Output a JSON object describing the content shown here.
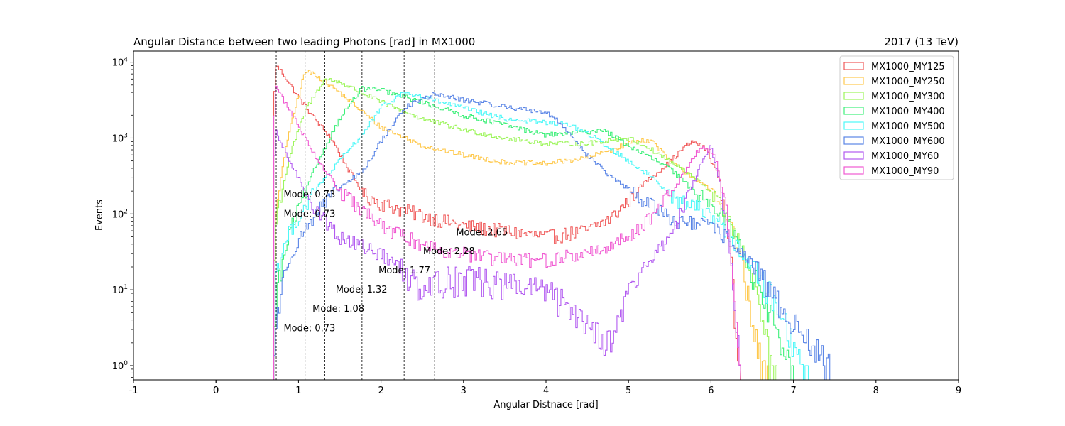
{
  "chart_data": {
    "type": "line",
    "title": "Angular Distance between two leading Photons [rad] in MX1000",
    "title_right": "2017 (13 TeV)",
    "xlabel": "Angular Distnace [rad]",
    "ylabel": "Events",
    "xlim": [
      -1,
      9
    ],
    "ylim": [
      0.65,
      14000
    ],
    "yscale": "log",
    "grid": false,
    "legend_position": "top-right",
    "x_ticks": [
      "-1",
      "0",
      "0",
      "1",
      "2",
      "3",
      "4",
      "5",
      "6",
      "7",
      "8",
      "9"
    ],
    "x_tick_values": [
      -1,
      0,
      0,
      1,
      2,
      3,
      4,
      5,
      6,
      7,
      8,
      9
    ],
    "y_ticks": [
      {
        "value": 1,
        "base": "10",
        "exp": "0"
      },
      {
        "value": 10,
        "base": "10",
        "exp": "1"
      },
      {
        "value": 100,
        "base": "10",
        "exp": "2"
      },
      {
        "value": 1000,
        "base": "10",
        "exp": "3"
      },
      {
        "value": 10000,
        "base": "10",
        "exp": "4"
      }
    ],
    "series": [
      {
        "name": "MX1000_MY125",
        "color": "#f05a5a",
        "peak": 0.73,
        "points": [
          [
            0.7,
            0
          ],
          [
            0.72,
            8000
          ],
          [
            0.73,
            9000
          ],
          [
            0.8,
            7500
          ],
          [
            1.0,
            3500
          ],
          [
            1.2,
            1800
          ],
          [
            1.4,
            1000
          ],
          [
            1.6,
            400
          ],
          [
            1.8,
            180
          ],
          [
            2.0,
            140
          ],
          [
            2.2,
            120
          ],
          [
            2.6,
            90
          ],
          [
            3.0,
            70
          ],
          [
            3.5,
            60
          ],
          [
            4.0,
            50
          ],
          [
            4.5,
            60
          ],
          [
            4.8,
            90
          ],
          [
            5.0,
            150
          ],
          [
            5.2,
            260
          ],
          [
            5.5,
            480
          ],
          [
            5.7,
            800
          ],
          [
            5.8,
            900
          ],
          [
            5.95,
            700
          ],
          [
            6.1,
            300
          ],
          [
            6.25,
            30
          ],
          [
            6.3,
            2
          ],
          [
            6.35,
            0
          ]
        ]
      },
      {
        "name": "MX1000_MY250",
        "color": "#ffc94d",
        "peak": 1.08,
        "points": [
          [
            0.7,
            0
          ],
          [
            0.74,
            120
          ],
          [
            0.85,
            800
          ],
          [
            1.0,
            3500
          ],
          [
            1.08,
            7500
          ],
          [
            1.2,
            7000
          ],
          [
            1.5,
            4000
          ],
          [
            2.0,
            1400
          ],
          [
            2.5,
            800
          ],
          [
            3.0,
            600
          ],
          [
            3.5,
            480
          ],
          [
            4.0,
            460
          ],
          [
            4.5,
            550
          ],
          [
            4.8,
            700
          ],
          [
            5.0,
            850
          ],
          [
            5.15,
            950
          ],
          [
            5.3,
            900
          ],
          [
            5.5,
            500
          ],
          [
            5.8,
            300
          ],
          [
            6.0,
            200
          ],
          [
            6.2,
            100
          ],
          [
            6.4,
            20
          ],
          [
            6.5,
            3
          ],
          [
            6.65,
            1
          ],
          [
            6.7,
            0
          ]
        ]
      },
      {
        "name": "MX1000_MY300",
        "color": "#9cf55a",
        "peak": 1.32,
        "points": [
          [
            0.7,
            0
          ],
          [
            0.74,
            100
          ],
          [
            0.9,
            600
          ],
          [
            1.1,
            2500
          ],
          [
            1.32,
            6000
          ],
          [
            1.5,
            5500
          ],
          [
            2.0,
            3000
          ],
          [
            2.5,
            1800
          ],
          [
            3.0,
            1300
          ],
          [
            3.5,
            1000
          ],
          [
            4.0,
            850
          ],
          [
            4.5,
            850
          ],
          [
            4.8,
            950
          ],
          [
            5.0,
            1000
          ],
          [
            5.2,
            800
          ],
          [
            5.5,
            500
          ],
          [
            5.8,
            300
          ],
          [
            6.0,
            200
          ],
          [
            6.2,
            100
          ],
          [
            6.4,
            30
          ],
          [
            6.6,
            5
          ],
          [
            6.75,
            1
          ],
          [
            6.8,
            0
          ]
        ]
      },
      {
        "name": "MX1000_MY400",
        "color": "#3ef07a",
        "peak": 1.77,
        "points": [
          [
            0.7,
            0
          ],
          [
            0.74,
            10
          ],
          [
            0.9,
            60
          ],
          [
            1.2,
            400
          ],
          [
            1.5,
            1800
          ],
          [
            1.77,
            4500
          ],
          [
            2.0,
            4300
          ],
          [
            2.5,
            3000
          ],
          [
            3.0,
            2000
          ],
          [
            3.5,
            1500
          ],
          [
            4.0,
            1100
          ],
          [
            4.5,
            1200
          ],
          [
            4.7,
            1300
          ],
          [
            5.0,
            800
          ],
          [
            5.5,
            400
          ],
          [
            5.8,
            200
          ],
          [
            6.0,
            150
          ],
          [
            6.2,
            80
          ],
          [
            6.4,
            30
          ],
          [
            6.6,
            10
          ],
          [
            6.8,
            3
          ],
          [
            6.95,
            1
          ],
          [
            7.0,
            0
          ]
        ]
      },
      {
        "name": "MX1000_MY500",
        "color": "#4ef8f8",
        "peak": 2.28,
        "points": [
          [
            0.7,
            0
          ],
          [
            0.74,
            20
          ],
          [
            0.9,
            60
          ],
          [
            1.2,
            200
          ],
          [
            1.5,
            500
          ],
          [
            1.8,
            1200
          ],
          [
            2.0,
            2500
          ],
          [
            2.28,
            4000
          ],
          [
            2.5,
            3500
          ],
          [
            3.0,
            2500
          ],
          [
            3.5,
            1800
          ],
          [
            4.0,
            1600
          ],
          [
            4.3,
            1500
          ],
          [
            4.6,
            1000
          ],
          [
            5.0,
            500
          ],
          [
            5.3,
            300
          ],
          [
            5.6,
            150
          ],
          [
            5.9,
            120
          ],
          [
            6.1,
            80
          ],
          [
            6.3,
            40
          ],
          [
            6.5,
            20
          ],
          [
            6.7,
            10
          ],
          [
            6.9,
            4
          ],
          [
            7.1,
            1
          ],
          [
            7.2,
            0
          ]
        ]
      },
      {
        "name": "MX1000_MY600",
        "color": "#5a85e6",
        "peak": 2.65,
        "points": [
          [
            0.7,
            0
          ],
          [
            0.74,
            5
          ],
          [
            0.9,
            30
          ],
          [
            1.2,
            100
          ],
          [
            1.5,
            220
          ],
          [
            1.8,
            380
          ],
          [
            2.0,
            900
          ],
          [
            2.3,
            2600
          ],
          [
            2.65,
            3800
          ],
          [
            3.0,
            3200
          ],
          [
            3.5,
            2600
          ],
          [
            4.0,
            2200
          ],
          [
            4.2,
            1500
          ],
          [
            4.5,
            600
          ],
          [
            4.8,
            300
          ],
          [
            5.2,
            150
          ],
          [
            5.6,
            80
          ],
          [
            6.0,
            70
          ],
          [
            6.3,
            40
          ],
          [
            6.6,
            15
          ],
          [
            6.9,
            5
          ],
          [
            7.2,
            2
          ],
          [
            7.45,
            1
          ],
          [
            7.5,
            0
          ]
        ]
      },
      {
        "name": "MX1000_MY60",
        "color": "#b25af0",
        "peak": 0.73,
        "points": [
          [
            0.7,
            0
          ],
          [
            0.72,
            1100
          ],
          [
            0.73,
            1200
          ],
          [
            0.8,
            800
          ],
          [
            1.0,
            300
          ],
          [
            1.2,
            120
          ],
          [
            1.5,
            50
          ],
          [
            2.0,
            30
          ],
          [
            2.5,
            12
          ],
          [
            3.0,
            15
          ],
          [
            3.5,
            12
          ],
          [
            4.0,
            10
          ],
          [
            4.5,
            4
          ],
          [
            4.8,
            2
          ],
          [
            5.0,
            10
          ],
          [
            5.2,
            20
          ],
          [
            5.5,
            50
          ],
          [
            5.7,
            150
          ],
          [
            5.9,
            500
          ],
          [
            6.0,
            800
          ],
          [
            6.1,
            300
          ],
          [
            6.25,
            20
          ],
          [
            6.35,
            1
          ],
          [
            6.4,
            0
          ]
        ]
      },
      {
        "name": "MX1000_MY90",
        "color": "#f05ad2",
        "peak": 0.73,
        "points": [
          [
            0.7,
            0
          ],
          [
            0.72,
            4000
          ],
          [
            0.73,
            4800
          ],
          [
            0.8,
            3500
          ],
          [
            1.0,
            1500
          ],
          [
            1.2,
            600
          ],
          [
            1.5,
            200
          ],
          [
            2.0,
            70
          ],
          [
            2.5,
            40
          ],
          [
            3.0,
            30
          ],
          [
            3.5,
            25
          ],
          [
            4.0,
            25
          ],
          [
            4.5,
            30
          ],
          [
            4.8,
            40
          ],
          [
            5.0,
            50
          ],
          [
            5.3,
            100
          ],
          [
            5.6,
            250
          ],
          [
            5.8,
            600
          ],
          [
            5.9,
            800
          ],
          [
            6.05,
            600
          ],
          [
            6.2,
            100
          ],
          [
            6.3,
            5
          ],
          [
            6.35,
            1
          ],
          [
            6.4,
            0
          ]
        ]
      }
    ],
    "vlines": [
      0.73,
      1.08,
      1.32,
      1.77,
      2.28,
      2.65
    ],
    "annotations": [
      {
        "text": "Mode: 0.73",
        "x": 0.82,
        "y": 180
      },
      {
        "text": "Mode: 0.73",
        "x": 0.82,
        "y": 100
      },
      {
        "text": "Mode: 0.73",
        "x": 0.82,
        "y": 3.1
      },
      {
        "text": "Mode: 1.08",
        "x": 1.17,
        "y": 5.6
      },
      {
        "text": "Mode: 1.32",
        "x": 1.45,
        "y": 10
      },
      {
        "text": "Mode: 1.77",
        "x": 1.97,
        "y": 18
      },
      {
        "text": "Mode: 2.28",
        "x": 2.51,
        "y": 32
      },
      {
        "text": "Mode: 2.65",
        "x": 2.91,
        "y": 57
      }
    ]
  }
}
